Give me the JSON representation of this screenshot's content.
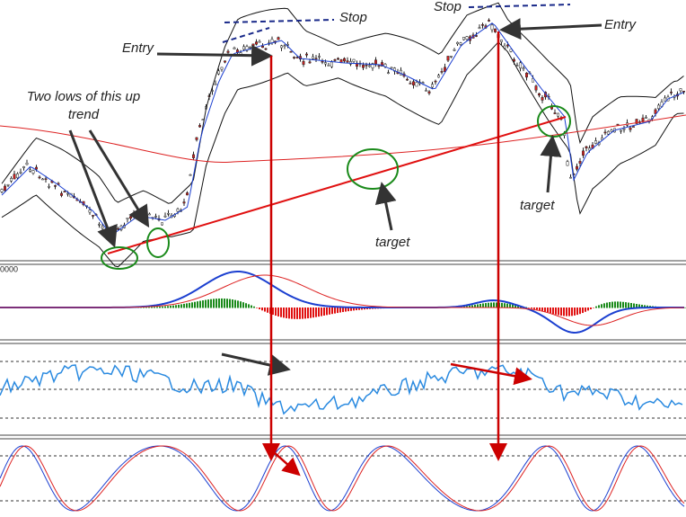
{
  "price_pane": {
    "stop_left": "Stop",
    "stop_right": "Stop",
    "entry_left": "Entry",
    "entry_right": "Entry",
    "lows_note_line1": "Two lows of this up",
    "lows_note_line2": "trend",
    "target_middle": "target",
    "target_right": "target"
  },
  "macd_pane": {
    "level_label": "0000"
  }
}
